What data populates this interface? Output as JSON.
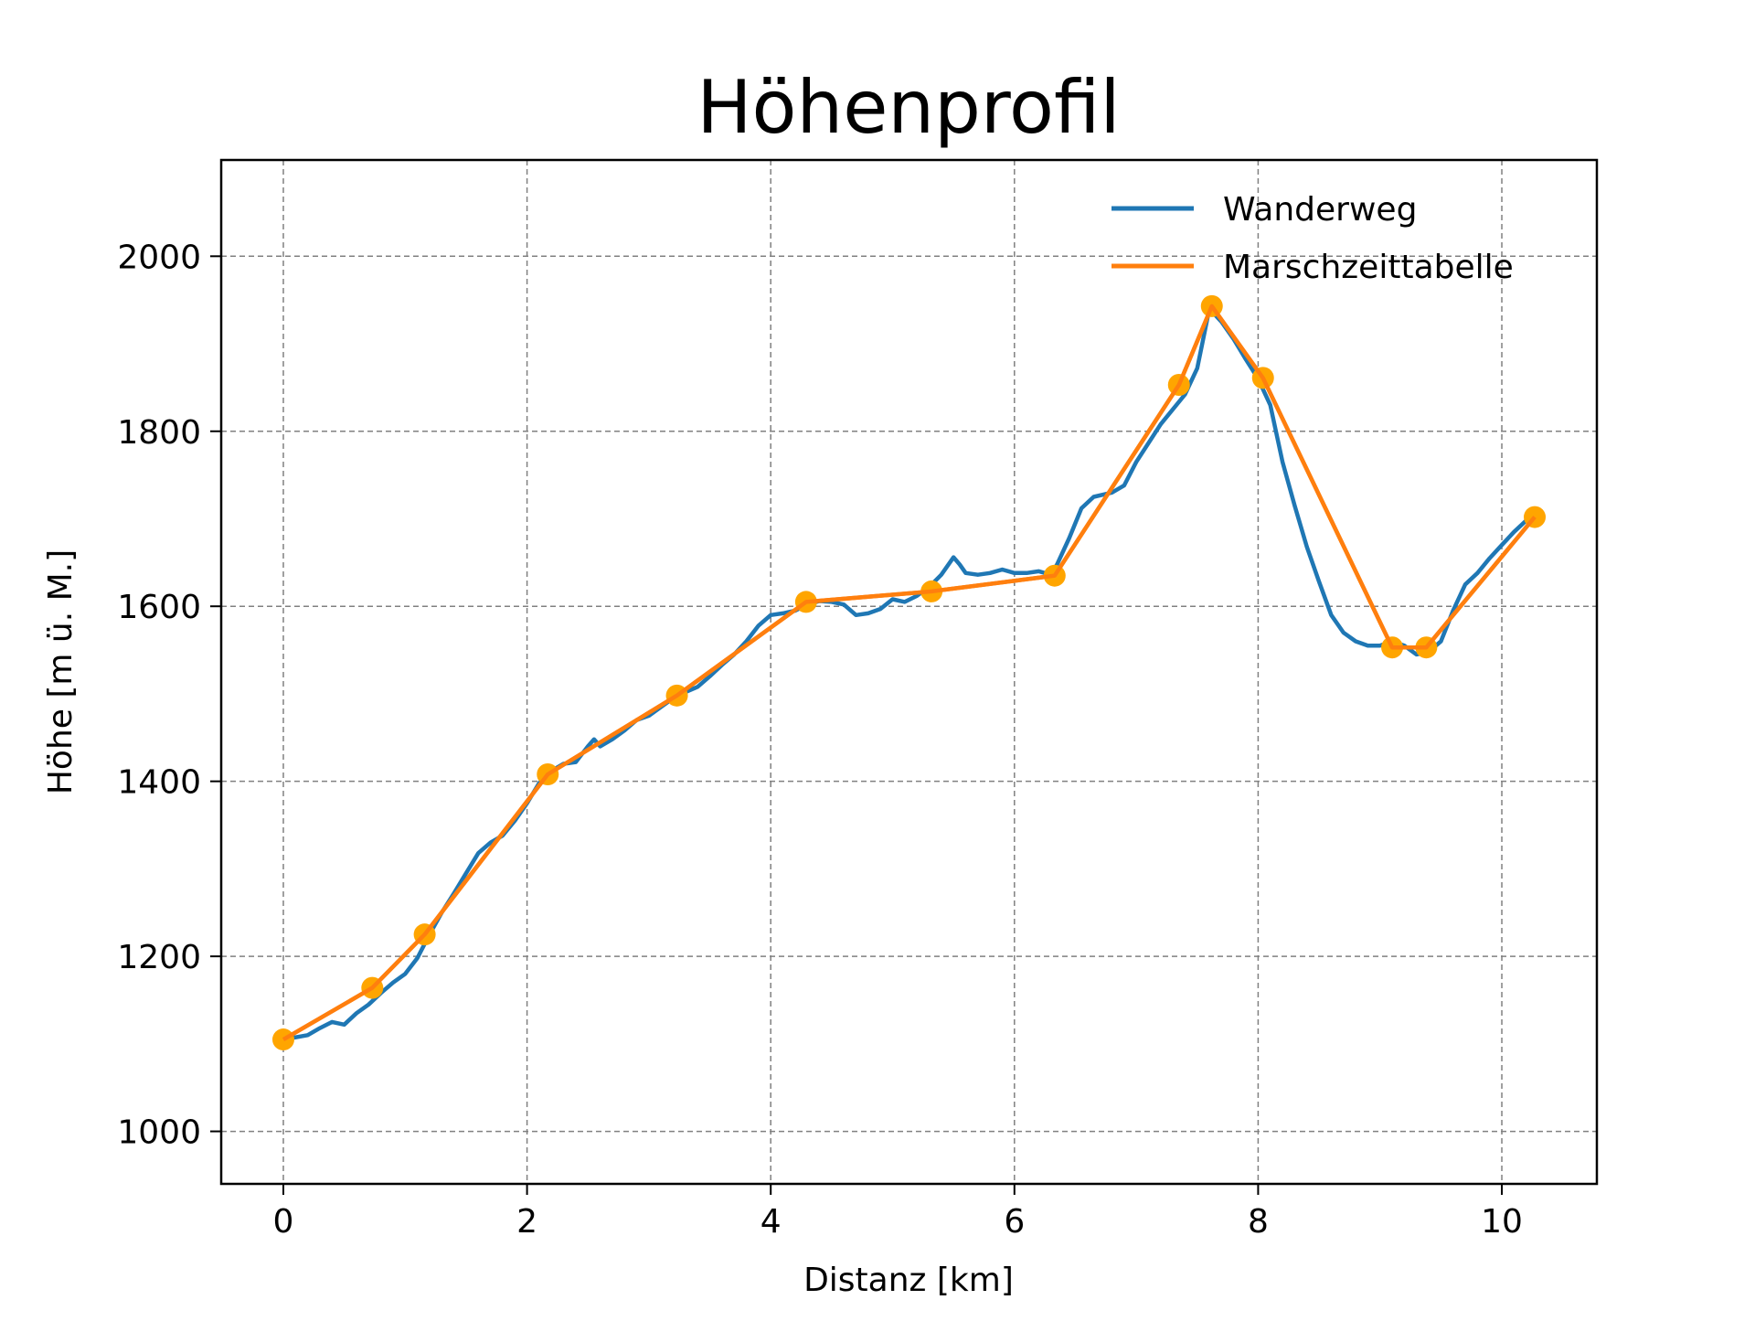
{
  "chart_data": {
    "type": "line",
    "title": "Höhenprofil",
    "xlabel": "Distanz [km]",
    "ylabel": "Höhe [m ü. M.]",
    "xlim": [
      -0.51,
      10.78
    ],
    "ylim": [
      940,
      2110
    ],
    "x_ticks": [
      0,
      2,
      4,
      6,
      8,
      10
    ],
    "x_tick_labels": [
      "0",
      "2",
      "4",
      "6",
      "8",
      "10"
    ],
    "y_ticks": [
      1000,
      1200,
      1400,
      1600,
      1800,
      2000
    ],
    "y_tick_labels": [
      "1000",
      "1200",
      "1400",
      "1600",
      "1800",
      "2000"
    ],
    "grid": true,
    "legend": "top-right",
    "series": [
      {
        "name": "Wanderweg",
        "color": "#1f77b4",
        "x": [
          0,
          0.2,
          0.3,
          0.4,
          0.5,
          0.6,
          0.7,
          0.8,
          0.9,
          1.0,
          1.1,
          1.2,
          1.3,
          1.4,
          1.5,
          1.6,
          1.7,
          1.8,
          1.9,
          2.0,
          2.1,
          2.2,
          2.3,
          2.4,
          2.5,
          2.55,
          2.6,
          2.7,
          2.8,
          2.9,
          3.0,
          3.1,
          3.2,
          3.3,
          3.4,
          3.5,
          3.6,
          3.7,
          3.8,
          3.9,
          4.0,
          4.1,
          4.2,
          4.3,
          4.4,
          4.5,
          4.6,
          4.7,
          4.8,
          4.9,
          5.0,
          5.1,
          5.2,
          5.3,
          5.4,
          5.5,
          5.55,
          5.6,
          5.7,
          5.8,
          5.9,
          6.0,
          6.1,
          6.2,
          6.3,
          6.35,
          6.45,
          6.55,
          6.65,
          6.8,
          6.9,
          7.0,
          7.2,
          7.4,
          7.5,
          7.6,
          7.7,
          7.8,
          7.9,
          8.0,
          8.1,
          8.2,
          8.3,
          8.4,
          8.5,
          8.6,
          8.7,
          8.8,
          8.9,
          9.0,
          9.1,
          9.2,
          9.3,
          9.4,
          9.5,
          9.6,
          9.7,
          9.8,
          9.9,
          10.0,
          10.1,
          10.2
        ],
        "y": [
          1105,
          1110,
          1118,
          1125,
          1122,
          1135,
          1145,
          1158,
          1170,
          1180,
          1198,
          1225,
          1250,
          1272,
          1295,
          1318,
          1330,
          1338,
          1355,
          1375,
          1398,
          1412,
          1420,
          1422,
          1440,
          1448,
          1440,
          1448,
          1458,
          1470,
          1475,
          1485,
          1495,
          1502,
          1508,
          1520,
          1533,
          1545,
          1560,
          1578,
          1590,
          1592,
          1595,
          1602,
          1606,
          1605,
          1602,
          1590,
          1592,
          1597,
          1608,
          1605,
          1612,
          1622,
          1636,
          1656,
          1648,
          1638,
          1636,
          1638,
          1642,
          1638,
          1638,
          1640,
          1636,
          1648,
          1678,
          1712,
          1725,
          1730,
          1738,
          1765,
          1808,
          1842,
          1872,
          1940,
          1925,
          1905,
          1882,
          1860,
          1830,
          1765,
          1715,
          1668,
          1628,
          1590,
          1570,
          1560,
          1555,
          1555,
          1560,
          1555,
          1545,
          1548,
          1560,
          1595,
          1625,
          1638,
          1655,
          1670,
          1685,
          1698
        ]
      },
      {
        "name": "Marschzeittabelle",
        "color": "#ff7f0e",
        "x": [
          0,
          0.73,
          1.16,
          2.17,
          3.23,
          4.29,
          5.32,
          6.33,
          7.35,
          7.62,
          8.04,
          9.1,
          9.38,
          10.27
        ],
        "y": [
          1105,
          1164,
          1225,
          1408,
          1498,
          1605,
          1617,
          1635,
          1853,
          1943,
          1861,
          1553,
          1553,
          1702
        ]
      }
    ],
    "marker_color": "#ffa500"
  }
}
